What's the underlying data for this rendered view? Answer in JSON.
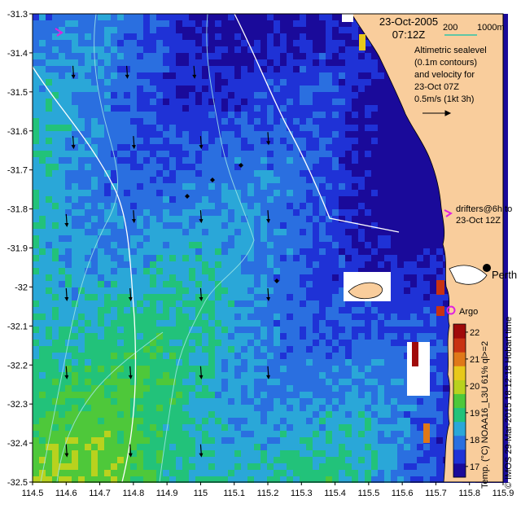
{
  "header": {
    "date": "23-Oct-2005",
    "time": "07:12Z",
    "scale_left": "200",
    "scale_right": "1000m"
  },
  "annotation": {
    "lines": [
      "Altimetric sealevel",
      "(0.1m contours)",
      "and velocity for",
      "23-Oct 07Z",
      "0.5m/s (1kt 3h)"
    ]
  },
  "drifters": {
    "line1": "drifters@6h to",
    "line2": "23-Oct 12Z"
  },
  "places": {
    "city": "Perth",
    "argo": "Argo"
  },
  "colorbar": {
    "ticks": [
      "22",
      "21",
      "20",
      "19",
      "18",
      "17"
    ],
    "label": "Temp. (°C) NOAA16_L3U 61% ql>=2",
    "credit": "© IMOS 29-Mar-2015 18:12:18 Hobart time",
    "colors": [
      "#1a0a9a",
      "#1f32d6",
      "#2a6fe0",
      "#2aa7d8",
      "#22c27a",
      "#4ec83a",
      "#b9d21e",
      "#e8c81a",
      "#e07818",
      "#c83212",
      "#a00a0a"
    ]
  },
  "chart_data": {
    "type": "heatmap",
    "title": "",
    "xlabel": "",
    "ylabel": "",
    "xlim": [
      114.5,
      115.9
    ],
    "ylim": [
      -32.5,
      -31.3
    ],
    "x_ticks": [
      "114.5",
      "114.6",
      "114.7",
      "114.8",
      "114.9",
      "115",
      "115.1",
      "115.2",
      "115.3",
      "115.4",
      "115.5",
      "115.6",
      "115.7",
      "115.8",
      "115.9"
    ],
    "y_ticks": [
      "-31.3",
      "-31.4",
      "-31.5",
      "-31.6",
      "-31.7",
      "-31.8",
      "-31.9",
      "-32",
      "-32.1",
      "-32.2",
      "-32.3",
      "-32.4",
      "-32.5"
    ],
    "colorscale_range": [
      16.6,
      22.3
    ],
    "colorscale_unit": "°C",
    "velocity_arrows": [
      {
        "lon": 114.62,
        "lat": -31.45
      },
      {
        "lon": 114.78,
        "lat": -31.45
      },
      {
        "lon": 114.98,
        "lat": -31.45
      },
      {
        "lon": 114.62,
        "lat": -31.63
      },
      {
        "lon": 114.8,
        "lat": -31.63
      },
      {
        "lon": 115,
        "lat": -31.63
      },
      {
        "lon": 115.2,
        "lat": -31.62
      },
      {
        "lon": 114.6,
        "lat": -31.83
      },
      {
        "lon": 114.8,
        "lat": -31.82
      },
      {
        "lon": 115,
        "lat": -31.82
      },
      {
        "lon": 115.2,
        "lat": -31.82
      },
      {
        "lon": 114.6,
        "lat": -32.02
      },
      {
        "lon": 114.79,
        "lat": -32.02
      },
      {
        "lon": 115,
        "lat": -32.02
      },
      {
        "lon": 115.2,
        "lat": -32.02
      },
      {
        "lon": 114.6,
        "lat": -32.22
      },
      {
        "lon": 114.79,
        "lat": -32.22
      },
      {
        "lon": 115,
        "lat": -32.22
      },
      {
        "lon": 115.2,
        "lat": -32.22
      },
      {
        "lon": 114.6,
        "lat": -32.42
      },
      {
        "lon": 114.79,
        "lat": -32.42
      },
      {
        "lon": 115,
        "lat": -32.42
      }
    ]
  }
}
